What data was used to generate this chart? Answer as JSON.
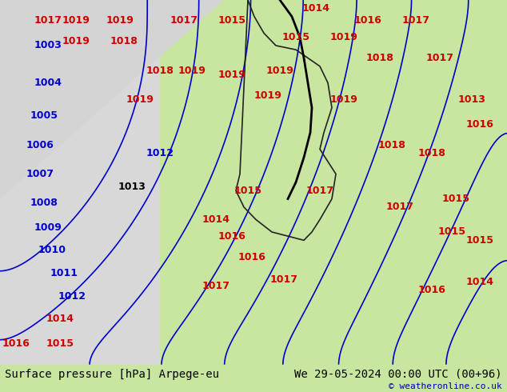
{
  "title_left": "Surface pressure [hPa] Arpege-eu",
  "title_right": "We 29-05-2024 00:00 UTC (00+96)",
  "copyright": "© weatheronline.co.uk",
  "bg_color_land_green": "#c8e6a0",
  "bg_color_land_gray": "#d0d0d0",
  "bg_color_sea": "#e8e8e8",
  "border_color": "#000000",
  "isobar_color_blue": "#0000cc",
  "isobar_color_red": "#cc0000",
  "isobar_color_black": "#000000",
  "label_fontsize": 9,
  "title_fontsize": 10,
  "copyright_fontsize": 8,
  "fig_width": 6.34,
  "fig_height": 4.9,
  "dpi": 100
}
